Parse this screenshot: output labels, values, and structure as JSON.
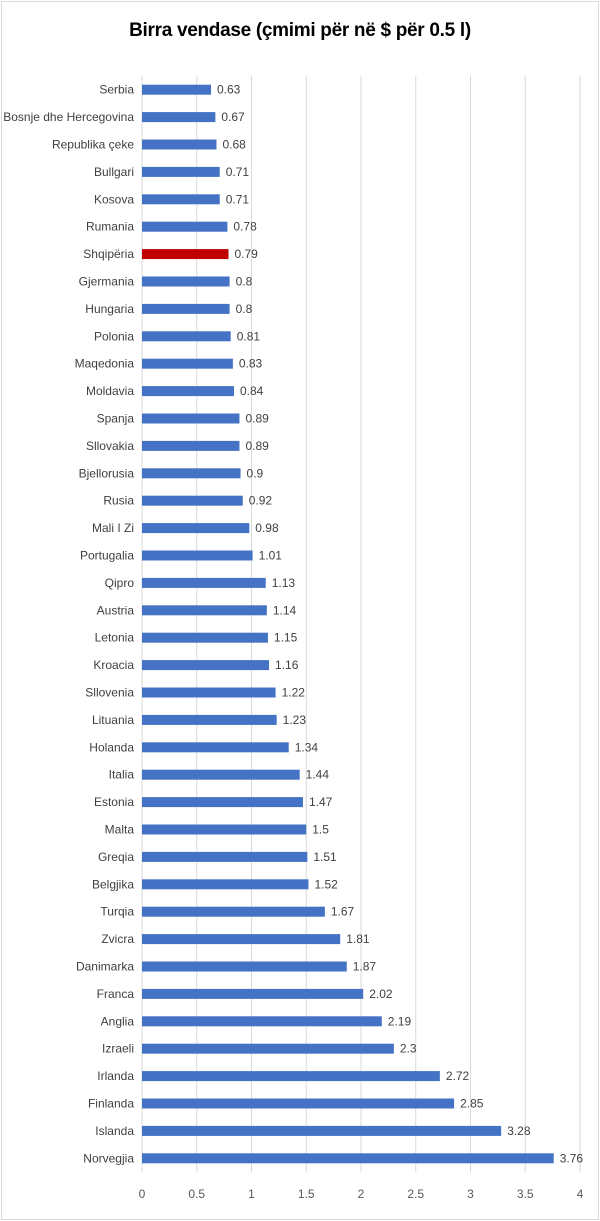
{
  "chart_data": {
    "type": "bar",
    "orientation": "horizontal",
    "title": "Birra vendase (çmimi për në $ për  0.5 l)",
    "xlabel": "",
    "ylabel": "",
    "xlim": [
      0,
      4
    ],
    "xticks": [
      "0",
      "0.5",
      "1",
      "1.5",
      "2",
      "2.5",
      "3",
      "3.5",
      "4"
    ],
    "grid": true,
    "bar_color": "#4472c4",
    "highlight_color": "#c00000",
    "highlight_category": "Shqipëria",
    "categories": [
      "Serbia",
      "Bosnje dhe Hercegovina",
      "Republika çeke",
      "Bullgari",
      "Kosova",
      "Rumania",
      "Shqipëria",
      "Gjermania",
      "Hungaria",
      "Polonia",
      "Maqedonia",
      "Moldavia",
      "Spanja",
      "Sllovakia",
      "Bjellorusia",
      "Rusia",
      "Mali I Zi",
      "Portugalia",
      "Qipro",
      "Austria",
      "Letonia",
      "Kroacia",
      "Sllovenia",
      "Lituania",
      "Holanda",
      "Italia",
      "Estonia",
      "Malta",
      "Greqia",
      "Belgjika",
      "Turqia",
      "Zvicra",
      "Danimarka",
      "Franca",
      "Anglia",
      "Izraeli",
      "Irlanda",
      "Finlanda",
      "Islanda",
      "Norvegjia"
    ],
    "values": [
      0.63,
      0.67,
      0.68,
      0.71,
      0.71,
      0.78,
      0.79,
      0.8,
      0.8,
      0.81,
      0.83,
      0.84,
      0.89,
      0.89,
      0.9,
      0.92,
      0.98,
      1.01,
      1.13,
      1.14,
      1.15,
      1.16,
      1.22,
      1.23,
      1.34,
      1.44,
      1.47,
      1.5,
      1.51,
      1.52,
      1.67,
      1.81,
      1.87,
      2.02,
      2.19,
      2.3,
      2.72,
      2.85,
      3.28,
      3.76
    ]
  }
}
